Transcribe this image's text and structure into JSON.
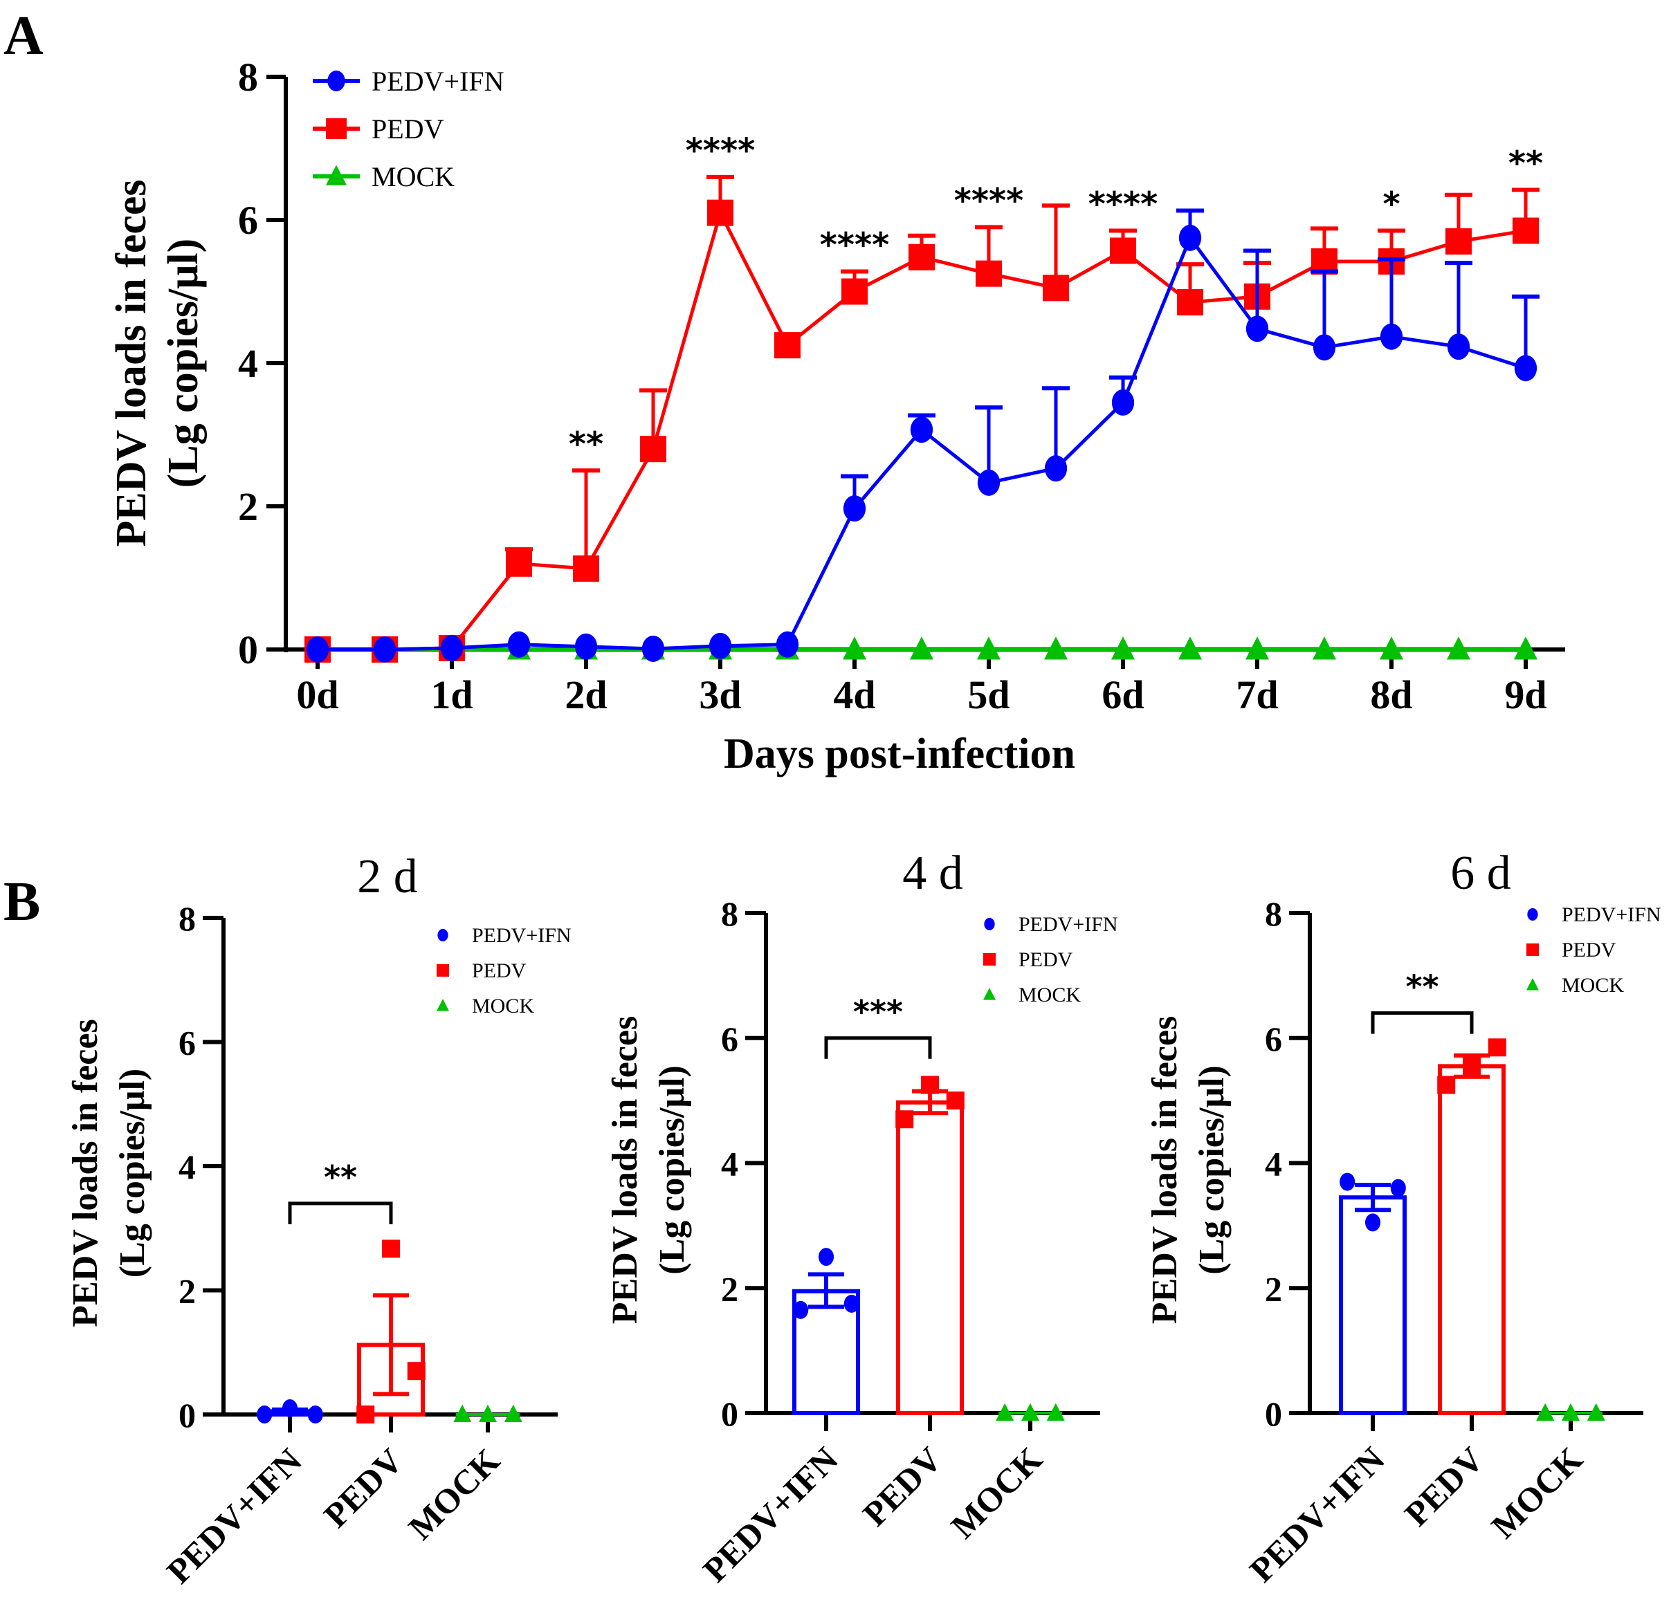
{
  "colors": {
    "pedv_ifn": "#0000ff",
    "pedv": "#ff0000",
    "mock": "#00c000",
    "axis": "#000000"
  },
  "chart_data": [
    {
      "panel_label": "A",
      "type": "line",
      "title": "",
      "xlabel": "Days post-infection",
      "ylabel_line1": "PEDV loads in feces",
      "ylabel_line2": "(Lg copies/μl)",
      "ylim": [
        0,
        8
      ],
      "yticks": [
        0,
        2,
        4,
        6,
        8
      ],
      "x": [
        0,
        0.5,
        1,
        1.5,
        2,
        2.5,
        3,
        3.5,
        4,
        4.5,
        5,
        5.5,
        6,
        6.5,
        7,
        7.5,
        8,
        8.5,
        9
      ],
      "xticks": [
        0,
        1,
        2,
        3,
        4,
        5,
        6,
        7,
        8,
        9
      ],
      "xtick_labels": [
        "0d",
        "1d",
        "2d",
        "3d",
        "4d",
        "5d",
        "6d",
        "7d",
        "8d",
        "9d"
      ],
      "legend_position": "top-left",
      "series": [
        {
          "name": "PEDV+IFN",
          "marker": "circle",
          "values": [
            0,
            0,
            0.02,
            0.07,
            0.04,
            0.01,
            0.05,
            0.07,
            1.97,
            3.07,
            2.33,
            2.53,
            3.45,
            5.75,
            4.48,
            4.22,
            4.37,
            4.23,
            3.93
          ],
          "error_upper": [
            null,
            null,
            null,
            null,
            null,
            null,
            null,
            null,
            2.42,
            3.27,
            3.38,
            3.65,
            3.8,
            6.13,
            5.57,
            5.28,
            5.45,
            5.4,
            4.93
          ]
        },
        {
          "name": "PEDV",
          "marker": "square",
          "values": [
            0,
            0,
            0.02,
            1.2,
            1.13,
            2.8,
            6.1,
            4.25,
            5.0,
            5.48,
            5.25,
            5.05,
            5.57,
            4.85,
            4.93,
            5.42,
            5.42,
            5.7,
            5.85
          ],
          "error_upper": [
            null,
            null,
            null,
            1.4,
            2.5,
            3.62,
            6.6,
            null,
            5.28,
            5.78,
            5.9,
            6.2,
            5.85,
            5.38,
            5.4,
            5.88,
            5.85,
            6.35,
            6.42
          ]
        },
        {
          "name": "MOCK",
          "marker": "triangle",
          "values": [
            0,
            0,
            0,
            0,
            0,
            0,
            0,
            0,
            0,
            0,
            0,
            0,
            0,
            0,
            0,
            0,
            0,
            0,
            0
          ],
          "error_upper": []
        }
      ],
      "annotations": [
        {
          "x": 2,
          "text": "**"
        },
        {
          "x": 3,
          "text": "****"
        },
        {
          "x": 4,
          "text": "****"
        },
        {
          "x": 5,
          "text": "****"
        },
        {
          "x": 6,
          "text": "****"
        },
        {
          "x": 8,
          "text": "*"
        },
        {
          "x": 9,
          "text": "**"
        }
      ]
    },
    {
      "panel_label": "B",
      "type": "bar",
      "title": "2 d",
      "ylabel_line1": "PEDV loads in feces",
      "ylabel_line2": "(Lg copies/μl)",
      "ylim": [
        0,
        8
      ],
      "yticks": [
        0,
        2,
        4,
        6,
        8
      ],
      "categories": [
        "PEDV+IFN",
        "PEDV",
        "MOCK"
      ],
      "legend_position": "top-right",
      "bars": [
        {
          "name": "PEDV+IFN",
          "mean": 0.05,
          "sem_low": 0.0,
          "sem_high": 0.08,
          "points": [
            0,
            0.1,
            0
          ]
        },
        {
          "name": "PEDV",
          "mean": 1.12,
          "sem_low": 0.33,
          "sem_high": 1.92,
          "points": [
            0,
            2.67,
            0.7
          ]
        },
        {
          "name": "MOCK",
          "mean": 0,
          "sem_low": 0,
          "sem_high": 0,
          "points": [
            0,
            0,
            0
          ]
        }
      ],
      "significance": {
        "from": "PEDV+IFN",
        "to": "PEDV",
        "text": "**",
        "level": 3.4
      }
    },
    {
      "panel_label": "",
      "type": "bar",
      "title": "4 d",
      "ylabel_line1": "PEDV loads in feces",
      "ylabel_line2": "(Lg copies/μl)",
      "ylim": [
        0,
        8
      ],
      "yticks": [
        0,
        2,
        4,
        6,
        8
      ],
      "categories": [
        "PEDV+IFN",
        "PEDV",
        "MOCK"
      ],
      "legend_position": "top-right",
      "bars": [
        {
          "name": "PEDV+IFN",
          "mean": 1.95,
          "sem_low": 1.7,
          "sem_high": 2.22,
          "points": [
            1.65,
            2.5,
            1.75
          ]
        },
        {
          "name": "PEDV",
          "mean": 4.97,
          "sem_low": 4.8,
          "sem_high": 5.15,
          "points": [
            4.7,
            5.25,
            5.0
          ]
        },
        {
          "name": "MOCK",
          "mean": 0,
          "sem_low": 0,
          "sem_high": 0,
          "points": [
            0,
            0,
            0
          ]
        }
      ],
      "significance": {
        "from": "PEDV+IFN",
        "to": "PEDV",
        "text": "***",
        "level": 6.0
      }
    },
    {
      "panel_label": "",
      "type": "bar",
      "title": "6 d",
      "ylabel_line1": "PEDV loads in feces",
      "ylabel_line2": "(Lg copies/μl)",
      "ylim": [
        0,
        8
      ],
      "yticks": [
        0,
        2,
        4,
        6,
        8
      ],
      "categories": [
        "PEDV+IFN",
        "PEDV",
        "MOCK"
      ],
      "legend_position": "top-right",
      "bars": [
        {
          "name": "PEDV+IFN",
          "mean": 3.45,
          "sem_low": 3.25,
          "sem_high": 3.65,
          "points": [
            3.7,
            3.05,
            3.6
          ]
        },
        {
          "name": "PEDV",
          "mean": 5.55,
          "sem_low": 5.38,
          "sem_high": 5.72,
          "points": [
            5.25,
            5.55,
            5.85
          ]
        },
        {
          "name": "MOCK",
          "mean": 0,
          "sem_low": 0,
          "sem_high": 0,
          "points": [
            0,
            0,
            0
          ]
        }
      ],
      "significance": {
        "from": "PEDV+IFN",
        "to": "PEDV",
        "text": "**",
        "level": 6.4
      }
    }
  ]
}
